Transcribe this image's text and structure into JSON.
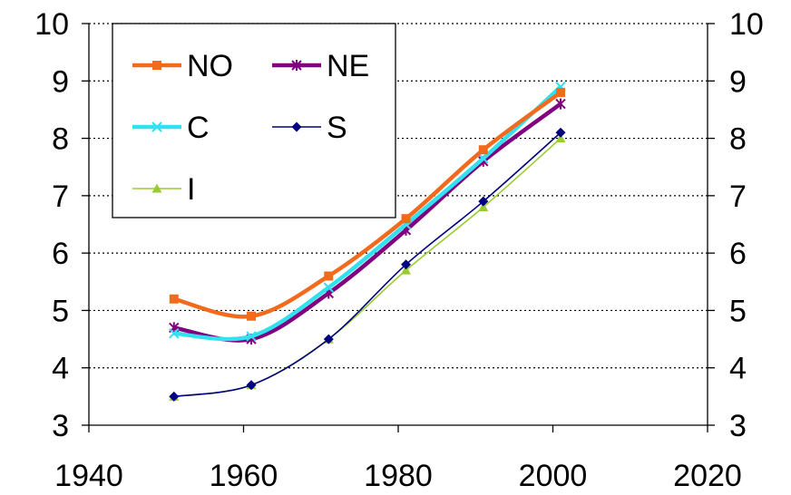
{
  "chart_data": {
    "type": "line",
    "title": "",
    "xlabel": "",
    "ylabel": "",
    "xlim": [
      1940,
      2020
    ],
    "ylim": [
      3,
      10
    ],
    "x_ticks": [
      1940,
      1960,
      1980,
      2000,
      2020
    ],
    "y_ticks": [
      3,
      4,
      5,
      6,
      7,
      8,
      9,
      10
    ],
    "grid": "horizontal-dotted",
    "legend_position": "top-left",
    "series": [
      {
        "name": "NO",
        "color": "#F26B1D",
        "marker": "square",
        "width": "thick",
        "x": [
          1951,
          1961,
          1971,
          1981,
          1991,
          2001
        ],
        "y": [
          5.2,
          4.9,
          5.6,
          6.6,
          7.8,
          8.8
        ]
      },
      {
        "name": "NE",
        "color": "#800080",
        "marker": "asterisk",
        "width": "thick",
        "x": [
          1951,
          1961,
          1971,
          1981,
          1991,
          2001
        ],
        "y": [
          4.7,
          4.5,
          5.3,
          6.4,
          7.6,
          8.6
        ]
      },
      {
        "name": "C",
        "color": "#33E0F0",
        "marker": "x",
        "width": "thick",
        "x": [
          1951,
          1961,
          1971,
          1981,
          1991,
          2001
        ],
        "y": [
          4.6,
          4.55,
          5.4,
          6.5,
          7.65,
          8.9
        ]
      },
      {
        "name": "S",
        "color": "#000080",
        "marker": "diamond",
        "width": "thin",
        "x": [
          1951,
          1961,
          1971,
          1981,
          1991,
          2001
        ],
        "y": [
          3.5,
          3.7,
          4.5,
          5.8,
          6.9,
          8.1
        ]
      },
      {
        "name": "I",
        "color": "#99CC33",
        "marker": "triangle",
        "width": "thin",
        "x": [
          1951,
          1961,
          1971,
          1981,
          1991,
          2001
        ],
        "y": [
          3.5,
          3.7,
          4.5,
          5.7,
          6.8,
          8.0
        ]
      }
    ]
  }
}
